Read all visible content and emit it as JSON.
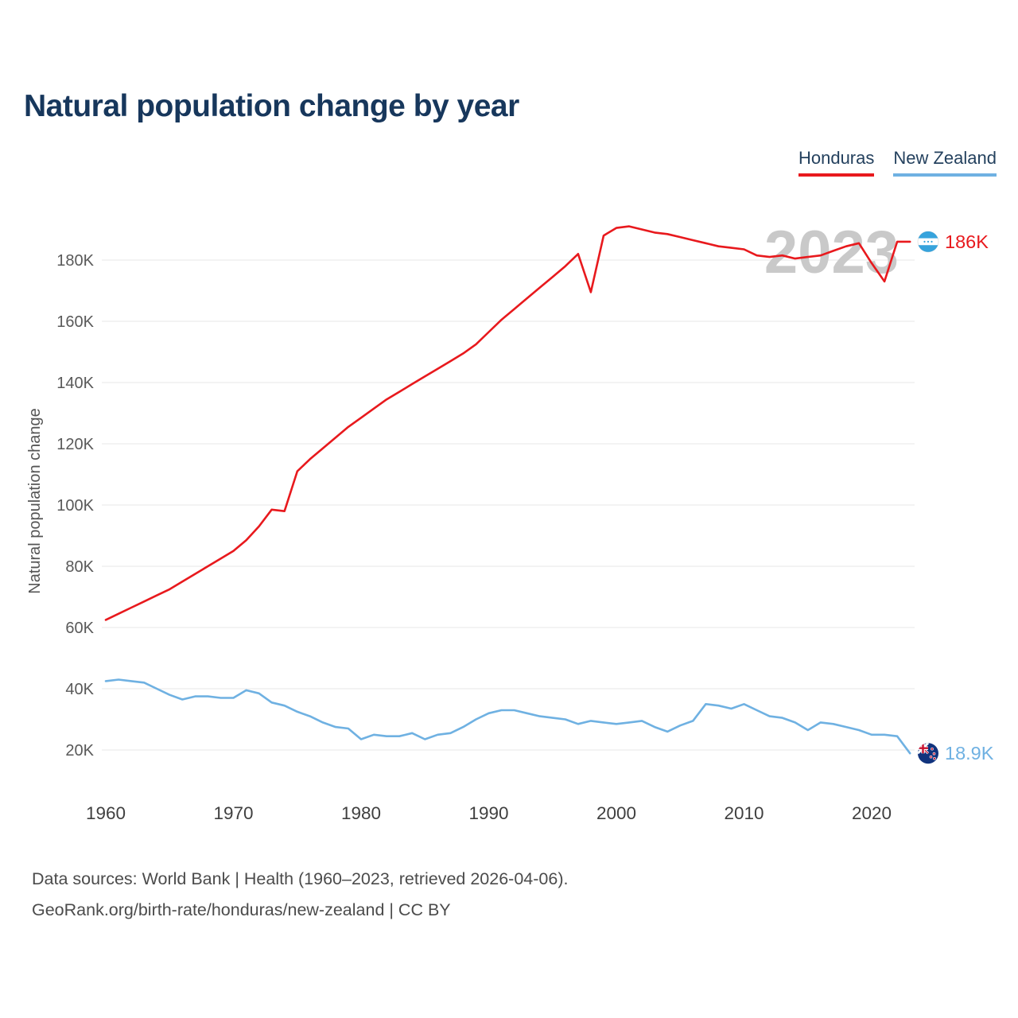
{
  "page": {
    "title": "Natural population change by year"
  },
  "legend": [
    {
      "label": "Honduras",
      "color": "#e8191d"
    },
    {
      "label": "New Zealand",
      "color": "#6fb1e2"
    }
  ],
  "chart_data": {
    "type": "line",
    "title": "Natural population change by year",
    "xlabel": "",
    "ylabel": "Natural population change",
    "watermark_year": "2023",
    "values_unit": "thousands",
    "ylim": [
      10000,
      196000
    ],
    "grid": "horizontal",
    "legend_position": "top-right",
    "x": [
      1960,
      1961,
      1962,
      1963,
      1964,
      1965,
      1966,
      1967,
      1968,
      1969,
      1970,
      1971,
      1972,
      1973,
      1974,
      1975,
      1976,
      1977,
      1978,
      1979,
      1980,
      1981,
      1982,
      1983,
      1984,
      1985,
      1986,
      1987,
      1988,
      1989,
      1990,
      1991,
      1992,
      1993,
      1994,
      1995,
      1996,
      1997,
      1998,
      1999,
      2000,
      2001,
      2002,
      2003,
      2004,
      2005,
      2006,
      2007,
      2008,
      2009,
      2010,
      2011,
      2012,
      2013,
      2014,
      2015,
      2016,
      2017,
      2018,
      2019,
      2020,
      2021,
      2022,
      2023
    ],
    "x_ticks": [
      1960,
      1970,
      1980,
      1990,
      2000,
      2010,
      2020
    ],
    "y_ticks": [
      "20K",
      "40K",
      "60K",
      "80K",
      "100K",
      "120K",
      "140K",
      "160K",
      "180K"
    ],
    "series": [
      {
        "name": "Honduras",
        "color": "#e8191d",
        "icon": "honduras-flag-icon",
        "values_k": [
          62.5,
          64.5,
          66.5,
          68.5,
          70.5,
          72.5,
          75,
          77.5,
          80,
          82.5,
          85,
          88.5,
          93,
          98.5,
          98,
          111,
          115,
          118.5,
          122,
          125.5,
          128.5,
          131.5,
          134.5,
          137,
          139.5,
          142,
          144.5,
          147,
          149.5,
          152.5,
          156.5,
          160.5,
          164,
          167.5,
          171,
          174.5,
          178,
          182,
          169.5,
          188,
          190.5,
          191,
          190,
          189,
          188.5,
          187.5,
          186.5,
          185.5,
          184.5,
          184,
          183.5,
          181.5,
          181,
          181.5,
          180.5,
          181,
          181.5,
          183,
          184.5,
          185.5,
          179,
          173,
          186,
          186
        ]
      },
      {
        "name": "New Zealand",
        "color": "#6fb1e2",
        "icon": "new-zealand-flag-icon",
        "values_k": [
          42.5,
          43,
          42.5,
          42,
          40,
          38,
          36.5,
          37.5,
          37.5,
          37,
          37,
          39.5,
          38.5,
          35.5,
          34.5,
          32.5,
          31,
          29,
          27.5,
          27,
          23.5,
          25,
          24.5,
          24.5,
          25.5,
          23.5,
          25,
          25.5,
          27.5,
          30,
          32,
          33,
          33,
          32,
          31,
          30.5,
          30,
          28.5,
          29.5,
          29,
          28.5,
          29,
          29.5,
          27.5,
          26,
          28,
          29.5,
          35,
          34.5,
          33.5,
          35,
          33,
          31,
          30.5,
          29,
          26.5,
          29,
          28.5,
          27.5,
          26.5,
          25,
          25,
          24.5,
          18.9
        ]
      }
    ],
    "end_labels": [
      {
        "series": "Honduras",
        "text": "186K",
        "icon": "honduras-flag-icon"
      },
      {
        "series": "New Zealand",
        "text": "18.9K",
        "icon": "new-zealand-flag-icon"
      }
    ]
  },
  "footer": {
    "line1": "Data sources: World Bank | Health (1960–2023, retrieved 2026-04-06).",
    "line2": "GeoRank.org/birth-rate/honduras/new-zealand | CC BY"
  }
}
